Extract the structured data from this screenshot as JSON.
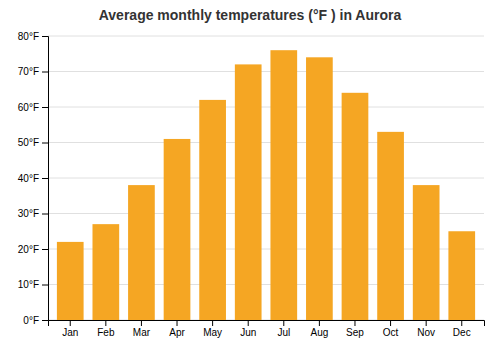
{
  "chart_data": {
    "type": "bar",
    "title": "Average monthly temperatures (°F ) in Aurora",
    "categories": [
      "Jan",
      "Feb",
      "Mar",
      "Apr",
      "May",
      "Jun",
      "Jul",
      "Aug",
      "Sep",
      "Oct",
      "Nov",
      "Dec"
    ],
    "values": [
      22,
      27,
      38,
      51,
      62,
      72,
      76,
      74,
      64,
      53,
      38,
      25
    ],
    "color": "#F5A623",
    "ylim": [
      0,
      80
    ],
    "yticks": [
      {
        "value": 0,
        "label": "0°F"
      },
      {
        "value": 10,
        "label": "10°F"
      },
      {
        "value": 20,
        "label": "20°F"
      },
      {
        "value": 30,
        "label": "30°F"
      },
      {
        "value": 40,
        "label": "40°F"
      },
      {
        "value": 50,
        "label": "50°F"
      },
      {
        "value": 60,
        "label": "60°F"
      },
      {
        "value": 70,
        "label": "70°F"
      },
      {
        "value": 80,
        "label": "80°F"
      }
    ],
    "grid": true
  }
}
